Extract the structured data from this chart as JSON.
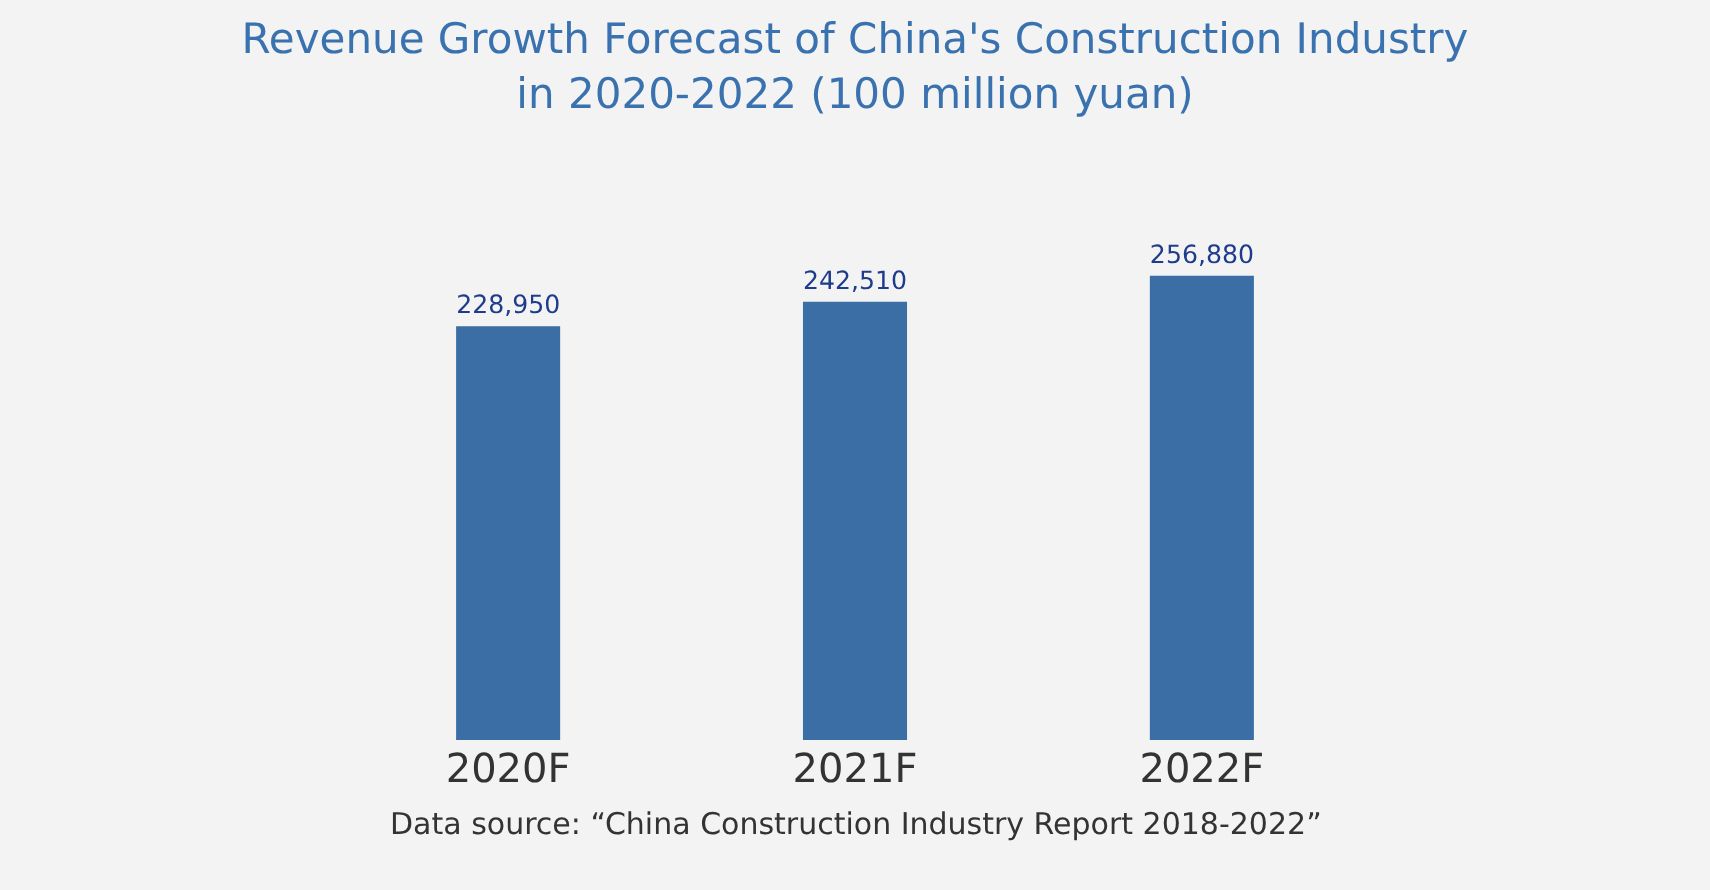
{
  "chart_data": {
    "type": "bar",
    "title": "Revenue Growth Forecast of China's Construction Industry\nin 2020-2022 (100 million yuan)",
    "categories": [
      "2020F",
      "2021F",
      "2022F"
    ],
    "values": [
      228950,
      242510,
      256880
    ],
    "color": "#3a6ea5",
    "value_labels": [
      "228,950",
      "242,510",
      "256,880"
    ],
    "tick_labels": "x",
    "grid": false,
    "legend": false,
    "annotations": [
      "Data source: “China Construction Industry Report 2018-2022”"
    ]
  }
}
